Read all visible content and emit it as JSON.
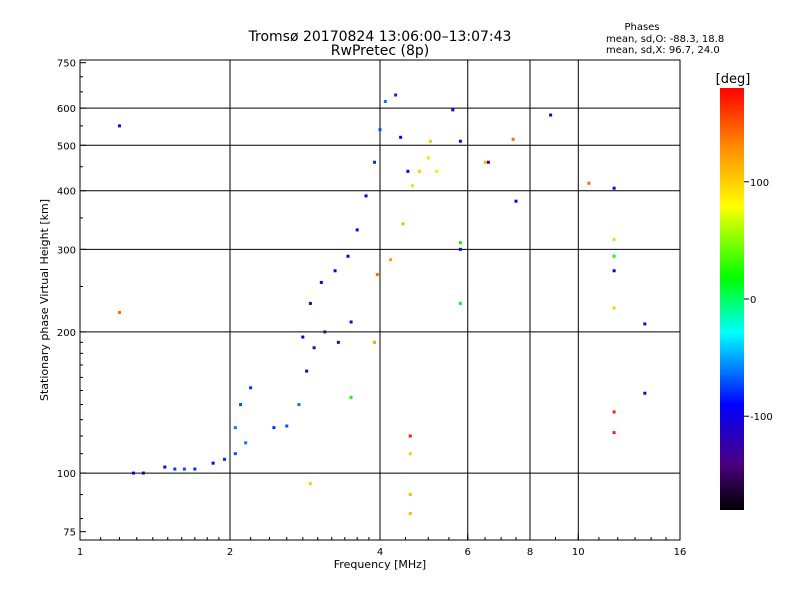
{
  "chart_data": {
    "type": "scatter",
    "title": "Tromsø 20170824 13:06:00–13:07:43",
    "subtitle": "RwPretec (8p)",
    "xlabel": "Frequency [MHz]",
    "ylabel": "Stationary phase Virtual Height [km]",
    "x_scale": "log2",
    "y_scale": "log",
    "xlim": [
      1,
      16
    ],
    "ylim": [
      72,
      760
    ],
    "x_ticks": [
      1,
      2,
      4,
      6,
      8,
      10,
      16
    ],
    "x_gridlines": [
      2,
      4,
      6,
      8,
      10
    ],
    "y_ticks": [
      75,
      100,
      200,
      300,
      400,
      500,
      600,
      750
    ],
    "y_gridlines": [
      100,
      200,
      300,
      400,
      500,
      600
    ],
    "grid": true,
    "stats": {
      "header": "Phases",
      "line_o": "mean, sd,O: -88.3, 18.8",
      "line_x": "mean, sd,X:  96.7, 24.0"
    },
    "colorbar": {
      "label": "[deg]",
      "min": -180,
      "max": 180,
      "ticks": [
        100,
        0,
        -100
      ],
      "colors": [
        "#000000",
        "#4b0082",
        "#0000ff",
        "#00ffff",
        "#00ff00",
        "#ffff00",
        "#ff8c00",
        "#ff0000"
      ]
    },
    "series": [
      {
        "color_encoding": "phase_deg",
        "values": [
          {
            "x": 1.28,
            "y": 100,
            "phase": -110
          },
          {
            "x": 1.34,
            "y": 100,
            "phase": -150
          },
          {
            "x": 1.48,
            "y": 103,
            "phase": -100
          },
          {
            "x": 1.55,
            "y": 102,
            "phase": -75
          },
          {
            "x": 1.62,
            "y": 102,
            "phase": -70
          },
          {
            "x": 1.7,
            "y": 102,
            "phase": -80
          },
          {
            "x": 1.85,
            "y": 105,
            "phase": -90
          },
          {
            "x": 1.95,
            "y": 107,
            "phase": -80
          },
          {
            "x": 2.05,
            "y": 110,
            "phase": -70
          },
          {
            "x": 2.15,
            "y": 116,
            "phase": -60
          },
          {
            "x": 2.05,
            "y": 125,
            "phase": -60
          },
          {
            "x": 2.1,
            "y": 140,
            "phase": -70
          },
          {
            "x": 2.2,
            "y": 152,
            "phase": -80
          },
          {
            "x": 2.45,
            "y": 125,
            "phase": -80
          },
          {
            "x": 2.6,
            "y": 126,
            "phase": -70
          },
          {
            "x": 2.75,
            "y": 140,
            "phase": -60
          },
          {
            "x": 2.85,
            "y": 165,
            "phase": -100
          },
          {
            "x": 2.95,
            "y": 185,
            "phase": -130
          },
          {
            "x": 3.1,
            "y": 200,
            "phase": -140
          },
          {
            "x": 3.3,
            "y": 190,
            "phase": -130
          },
          {
            "x": 3.5,
            "y": 210,
            "phase": -120
          },
          {
            "x": 2.8,
            "y": 195,
            "phase": -90
          },
          {
            "x": 2.9,
            "y": 230,
            "phase": -110
          },
          {
            "x": 3.05,
            "y": 255,
            "phase": -100
          },
          {
            "x": 3.25,
            "y": 270,
            "phase": -100
          },
          {
            "x": 3.45,
            "y": 290,
            "phase": -90
          },
          {
            "x": 3.6,
            "y": 330,
            "phase": -100
          },
          {
            "x": 3.75,
            "y": 390,
            "phase": -90
          },
          {
            "x": 3.9,
            "y": 460,
            "phase": -80
          },
          {
            "x": 4.0,
            "y": 540,
            "phase": -70
          },
          {
            "x": 4.1,
            "y": 620,
            "phase": -60
          },
          {
            "x": 4.3,
            "y": 640,
            "phase": -80
          },
          {
            "x": 4.4,
            "y": 520,
            "phase": -90
          },
          {
            "x": 4.55,
            "y": 440,
            "phase": -100
          },
          {
            "x": 3.95,
            "y": 265,
            "phase": 140
          },
          {
            "x": 4.2,
            "y": 285,
            "phase": 120
          },
          {
            "x": 4.45,
            "y": 340,
            "phase": 110
          },
          {
            "x": 4.65,
            "y": 410,
            "phase": 95
          },
          {
            "x": 4.8,
            "y": 440,
            "phase": 100
          },
          {
            "x": 5.0,
            "y": 470,
            "phase": 95
          },
          {
            "x": 5.2,
            "y": 440,
            "phase": 90
          },
          {
            "x": 5.05,
            "y": 510,
            "phase": 105
          },
          {
            "x": 1.2,
            "y": 550,
            "phase": -110
          },
          {
            "x": 1.2,
            "y": 220,
            "phase": 140
          },
          {
            "x": 2.9,
            "y": 95,
            "phase": 100
          },
          {
            "x": 3.5,
            "y": 145,
            "phase": 20
          },
          {
            "x": 3.9,
            "y": 190,
            "phase": 120
          },
          {
            "x": 4.6,
            "y": 120,
            "phase": 170
          },
          {
            "x": 4.6,
            "y": 110,
            "phase": 100
          },
          {
            "x": 4.6,
            "y": 90,
            "phase": 110
          },
          {
            "x": 4.6,
            "y": 82,
            "phase": 110
          },
          {
            "x": 5.8,
            "y": 310,
            "phase": 20
          },
          {
            "x": 5.8,
            "y": 300,
            "phase": -100
          },
          {
            "x": 5.8,
            "y": 230,
            "phase": 10
          },
          {
            "x": 5.6,
            "y": 595,
            "phase": -110
          },
          {
            "x": 5.8,
            "y": 510,
            "phase": -100
          },
          {
            "x": 6.6,
            "y": 460,
            "phase": -150
          },
          {
            "x": 6.5,
            "y": 460,
            "phase": 110
          },
          {
            "x": 7.4,
            "y": 515,
            "phase": 140
          },
          {
            "x": 7.5,
            "y": 380,
            "phase": -100
          },
          {
            "x": 8.8,
            "y": 580,
            "phase": -110
          },
          {
            "x": 10.5,
            "y": 415,
            "phase": 140
          },
          {
            "x": 11.8,
            "y": 405,
            "phase": -110
          },
          {
            "x": 11.8,
            "y": 315,
            "phase": 60
          },
          {
            "x": 11.8,
            "y": 290,
            "phase": 10
          },
          {
            "x": 11.8,
            "y": 270,
            "phase": -90
          },
          {
            "x": 11.8,
            "y": 225,
            "phase": 100
          },
          {
            "x": 11.8,
            "y": 135,
            "phase": 170
          },
          {
            "x": 11.8,
            "y": 122,
            "phase": 170
          },
          {
            "x": 13.6,
            "y": 208,
            "phase": -110
          },
          {
            "x": 13.6,
            "y": 148,
            "phase": -110
          }
        ]
      }
    ]
  }
}
